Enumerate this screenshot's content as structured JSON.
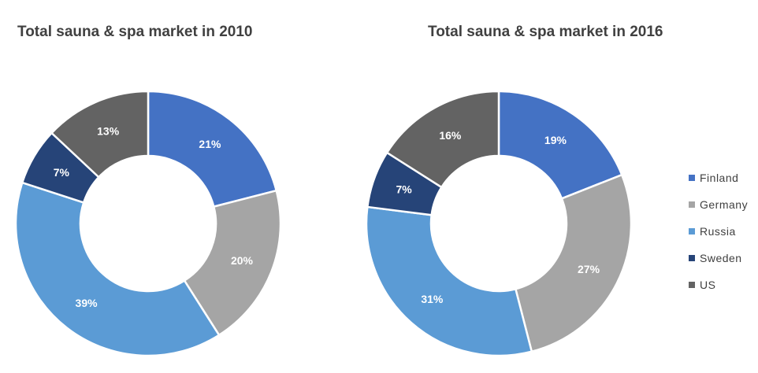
{
  "chart_data": [
    {
      "type": "pie",
      "variant": "donut",
      "title": "Total sauna & spa market in 2010",
      "categories": [
        "Finland",
        "Germany",
        "Russia",
        "Sweden",
        "US"
      ],
      "values": [
        21,
        20,
        39,
        7,
        13
      ],
      "labels": [
        "21%",
        "20%",
        "39%",
        "7%",
        "13%"
      ]
    },
    {
      "type": "pie",
      "variant": "donut",
      "title": "Total sauna & spa market in 2016",
      "categories": [
        "Finland",
        "Germany",
        "Russia",
        "Sweden",
        "US"
      ],
      "values": [
        19,
        27,
        31,
        7,
        16
      ],
      "labels": [
        "19%",
        "27%",
        "31%",
        "7%",
        "16%"
      ]
    }
  ],
  "legend": {
    "items": [
      {
        "label": "Finland",
        "color": "#4472c4"
      },
      {
        "label": "Germany",
        "color": "#a5a5a5"
      },
      {
        "label": "Russia",
        "color": "#5b9bd5"
      },
      {
        "label": "Sweden",
        "color": "#264478"
      },
      {
        "label": "US",
        "color": "#636363"
      }
    ]
  }
}
